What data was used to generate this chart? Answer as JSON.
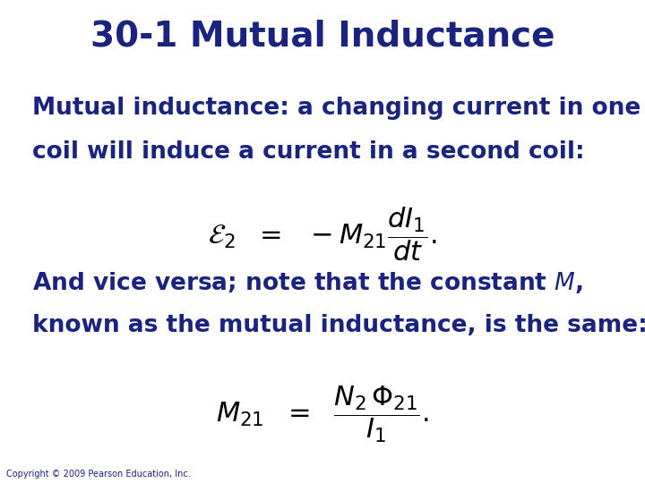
{
  "title": "30-1 Mutual Inductance",
  "title_color": "#1a237e",
  "title_fontsize": 28,
  "title_bold": true,
  "body_color": "#1a237e",
  "body_fontsize": 19,
  "bg_color": "#ffffff",
  "text1_line1": "Mutual inductance: a changing current in one",
  "text1_line2": "coil will induce a current in a second coil:",
  "eq1": "$\\mathcal{E}_2 \\ \\ = \\ \\ -M_{21}\\dfrac{dI_1}{dt}.$",
  "text2_line1": "And vice versa; note that the constant $M$,",
  "text2_line2": "known as the mutual inductance, is the same:",
  "eq2": "$M_{21} \\ \\ = \\ \\ \\dfrac{N_2\\,\\Phi_{21}}{I_1}.$",
  "copyright": "Copyright © 2009 Pearson Education, Inc.",
  "eq_fontsize": 22,
  "eq_color": "#000000"
}
